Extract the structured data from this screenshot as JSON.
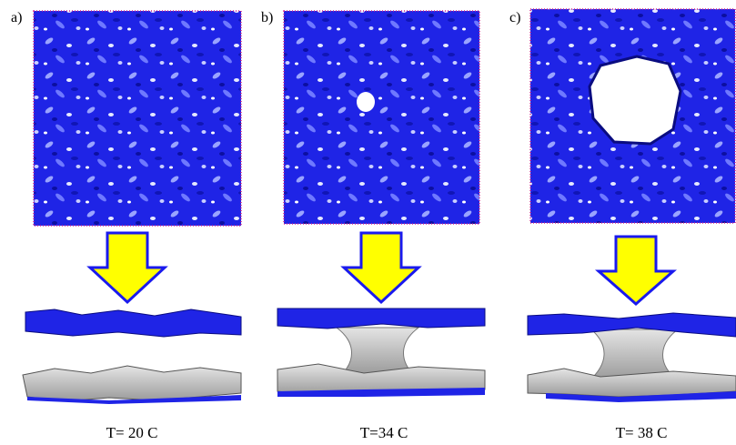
{
  "panels": [
    {
      "label": "a)",
      "temperature": "T= 20 C"
    },
    {
      "label": "b)",
      "temperature": "T=34 C"
    },
    {
      "label": "c)",
      "temperature": "T= 38 C"
    }
  ]
}
